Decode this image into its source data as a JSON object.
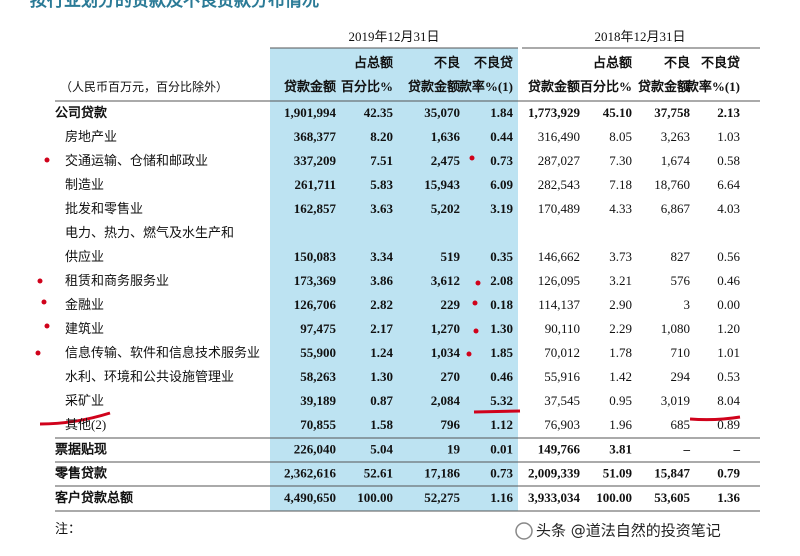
{
  "title": "按行业划分的贷款及不良贷款分布情况",
  "unit_note": "（人民币百万元，百分比除外）",
  "periods": [
    "2019年12月31日",
    "2018年12月31日"
  ],
  "columns": [
    [
      "贷款金额"
    ],
    [
      "占总额",
      "百分比%"
    ],
    [
      "不良",
      "贷款金额"
    ],
    [
      "不良贷",
      "款率%(1)"
    ],
    [
      "贷款金额"
    ],
    [
      "占总额",
      "百分比%"
    ],
    [
      "不良",
      "贷款金额"
    ],
    [
      "不良贷",
      "款率%(1)"
    ]
  ],
  "rows": [
    {
      "label": [
        "公司贷款"
      ],
      "bold": true,
      "values": [
        "1,901,994",
        "42.35",
        "35,070",
        "1.84",
        "1,773,929",
        "45.10",
        "37,758",
        "2.13"
      ]
    },
    {
      "label": [
        "房地产业"
      ],
      "bold": false,
      "values": [
        "368,377",
        "8.20",
        "1,636",
        "0.44",
        "316,490",
        "8.05",
        "3,263",
        "1.03"
      ]
    },
    {
      "label": [
        "交通运输、仓储和邮政业"
      ],
      "bold": false,
      "values": [
        "337,209",
        "7.51",
        "2,475",
        "0.73",
        "287,027",
        "7.30",
        "1,674",
        "0.58"
      ]
    },
    {
      "label": [
        "制造业"
      ],
      "bold": false,
      "values": [
        "261,711",
        "5.83",
        "15,943",
        "6.09",
        "282,543",
        "7.18",
        "18,760",
        "6.64"
      ]
    },
    {
      "label": [
        "批发和零售业"
      ],
      "bold": false,
      "values": [
        "162,857",
        "3.63",
        "5,202",
        "3.19",
        "170,489",
        "4.33",
        "6,867",
        "4.03"
      ]
    },
    {
      "label": [
        "电力、热力、燃气及水生产和",
        "供应业"
      ],
      "bold": false,
      "values": [
        "150,083",
        "3.34",
        "519",
        "0.35",
        "146,662",
        "3.73",
        "827",
        "0.56"
      ]
    },
    {
      "label": [
        "租赁和商务服务业"
      ],
      "bold": false,
      "values": [
        "173,369",
        "3.86",
        "3,612",
        "2.08",
        "126,095",
        "3.21",
        "576",
        "0.46"
      ]
    },
    {
      "label": [
        "金融业"
      ],
      "bold": false,
      "values": [
        "126,706",
        "2.82",
        "229",
        "0.18",
        "114,137",
        "2.90",
        "3",
        "0.00"
      ]
    },
    {
      "label": [
        "建筑业"
      ],
      "bold": false,
      "values": [
        "97,475",
        "2.17",
        "1,270",
        "1.30",
        "90,110",
        "2.29",
        "1,080",
        "1.20"
      ]
    },
    {
      "label": [
        "信息传输、软件和信息技术服务业"
      ],
      "bold": false,
      "values": [
        "55,900",
        "1.24",
        "1,034",
        "1.85",
        "70,012",
        "1.78",
        "710",
        "1.01"
      ]
    },
    {
      "label": [
        "水利、环境和公共设施管理业"
      ],
      "bold": false,
      "values": [
        "58,263",
        "1.30",
        "270",
        "0.46",
        "55,916",
        "1.42",
        "294",
        "0.53"
      ]
    },
    {
      "label": [
        "采矿业"
      ],
      "bold": false,
      "values": [
        "39,189",
        "0.87",
        "2,084",
        "5.32",
        "37,545",
        "0.95",
        "3,019",
        "8.04"
      ]
    },
    {
      "label": [
        "其他(2)"
      ],
      "bold": false,
      "values": [
        "70,855",
        "1.58",
        "796",
        "1.12",
        "76,903",
        "1.96",
        "685",
        "0.89"
      ]
    },
    {
      "label": [
        "票据贴现"
      ],
      "bold": true,
      "values": [
        "226,040",
        "5.04",
        "19",
        "0.01",
        "149,766",
        "3.81",
        "–",
        "–"
      ]
    },
    {
      "label": [
        "零售贷款"
      ],
      "bold": true,
      "values": [
        "2,362,616",
        "52.61",
        "17,186",
        "0.73",
        "2,009,339",
        "51.09",
        "15,847",
        "0.79"
      ]
    },
    {
      "label": [
        "客户贷款总额"
      ],
      "bold": true,
      "values": [
        "4,490,650",
        "100.00",
        "52,275",
        "1.16",
        "3,933,034",
        "100.00",
        "53,605",
        "1.36"
      ]
    }
  ],
  "note": "注：",
  "watermark": "头条 @道法自然的投资笔记"
}
